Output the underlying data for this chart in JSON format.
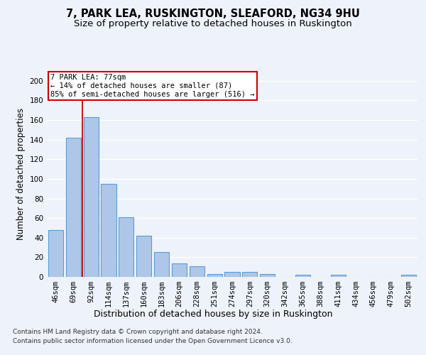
{
  "title": "7, PARK LEA, RUSKINGTON, SLEAFORD, NG34 9HU",
  "subtitle": "Size of property relative to detached houses in Ruskington",
  "xlabel": "Distribution of detached houses by size in Ruskington",
  "ylabel": "Number of detached properties",
  "bar_labels": [
    "46sqm",
    "69sqm",
    "92sqm",
    "114sqm",
    "137sqm",
    "160sqm",
    "183sqm",
    "206sqm",
    "228sqm",
    "251sqm",
    "274sqm",
    "297sqm",
    "320sqm",
    "342sqm",
    "365sqm",
    "388sqm",
    "411sqm",
    "434sqm",
    "456sqm",
    "479sqm",
    "502sqm"
  ],
  "bar_values": [
    48,
    142,
    163,
    95,
    61,
    42,
    25,
    14,
    11,
    3,
    5,
    5,
    3,
    0,
    2,
    0,
    2,
    0,
    0,
    0,
    2
  ],
  "bar_color": "#aec7e8",
  "bar_edge_color": "#5b9bd5",
  "bar_edge_width": 0.8,
  "marker_color": "#cc0000",
  "annotation_text": "7 PARK LEA: 77sqm\n← 14% of detached houses are smaller (87)\n85% of semi-detached houses are larger (516) →",
  "annotation_box_color": "#ffffff",
  "annotation_box_edge_color": "#cc0000",
  "ylim": [
    0,
    210
  ],
  "yticks": [
    0,
    20,
    40,
    60,
    80,
    100,
    120,
    140,
    160,
    180,
    200
  ],
  "background_color": "#eef2fa",
  "grid_color": "#ffffff",
  "footer_line1": "Contains HM Land Registry data © Crown copyright and database right 2024.",
  "footer_line2": "Contains public sector information licensed under the Open Government Licence v3.0.",
  "title_fontsize": 10.5,
  "subtitle_fontsize": 9.5,
  "xlabel_fontsize": 9,
  "ylabel_fontsize": 8.5,
  "tick_fontsize": 7.5,
  "annotation_fontsize": 7.5,
  "footer_fontsize": 6.5
}
